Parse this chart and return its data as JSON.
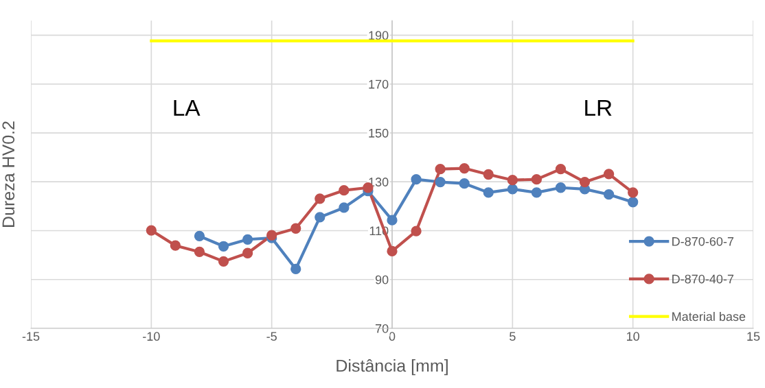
{
  "chart_data": {
    "type": "line",
    "xlabel": "Distância [mm]",
    "ylabel": "Dureza HV0.2",
    "xlim": [
      -15,
      15
    ],
    "xticks": [
      -15,
      -10,
      -5,
      0,
      5,
      10,
      15
    ],
    "ylim": [
      70,
      196
    ],
    "yticks": [
      70,
      90,
      110,
      130,
      150,
      170,
      190
    ],
    "grid": true,
    "legend": "right",
    "marker": "circle",
    "line_style": "solid",
    "series": [
      {
        "name": "D-870-60-7",
        "color": "#4f81bd",
        "x": [
          -8,
          -7,
          -6,
          -5,
          -4,
          -3,
          -2,
          -1,
          0,
          1,
          2,
          3,
          4,
          5,
          6,
          7,
          8,
          9,
          10
        ],
        "values": [
          107.8,
          103.6,
          106.4,
          107,
          94.3,
          115.5,
          119.4,
          126.2,
          114.3,
          131,
          129.9,
          129.3,
          125.6,
          127,
          125.6,
          127.6,
          127,
          124.8,
          121.7
        ]
      },
      {
        "name": "D-870-40-7",
        "color": "#c0504d",
        "x": [
          -10,
          -9,
          -8,
          -7,
          -6,
          -5,
          -4,
          -3,
          -2,
          -1,
          0,
          1,
          2,
          3,
          4,
          5,
          6,
          7,
          8,
          9,
          10
        ],
        "values": [
          110.1,
          103.9,
          101.3,
          97.4,
          100.8,
          108.1,
          110.9,
          123.1,
          126.5,
          127.6,
          101.6,
          109.8,
          135.2,
          135.5,
          133,
          130.7,
          131,
          135.2,
          129.9,
          133.2,
          125.6
        ]
      },
      {
        "name": "Material base",
        "color": "#ffff00",
        "marker": "none",
        "x": [
          -10,
          10
        ],
        "values": [
          187.7,
          187.7
        ]
      }
    ],
    "annotations": [
      "LA",
      "LR"
    ]
  }
}
